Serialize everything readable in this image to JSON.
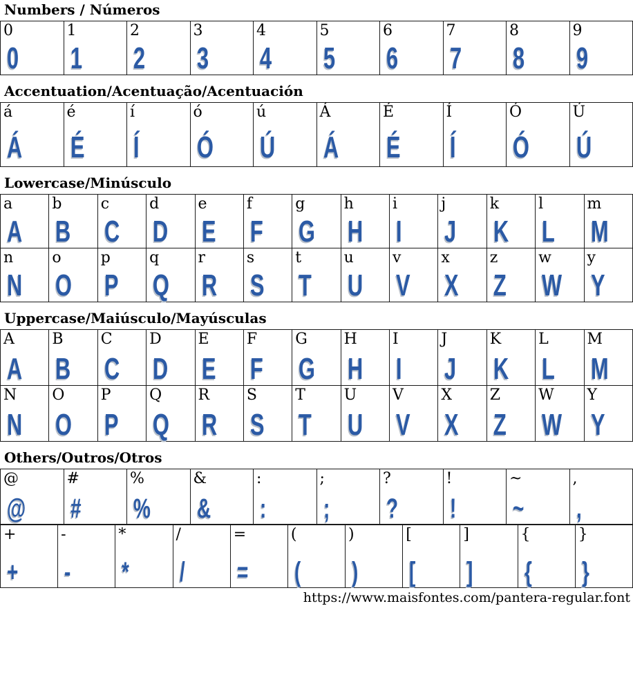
{
  "page": {
    "footer_url": "https://www.maisfontes.com/pantera-regular.font",
    "font_name": "Pantera Regular",
    "accent_color": "#2b5aa5",
    "glyph_shadow_color": "#b9c0ca",
    "border_color": "#1a1a1a"
  },
  "sections": [
    {
      "id": "numbers",
      "title": "Numbers / Números",
      "tables": [
        {
          "rows": [
            [
              {
                "ref": "0",
                "glyph": "0"
              },
              {
                "ref": "1",
                "glyph": "1"
              },
              {
                "ref": "2",
                "glyph": "2"
              },
              {
                "ref": "3",
                "glyph": "3"
              },
              {
                "ref": "4",
                "glyph": "4"
              },
              {
                "ref": "5",
                "glyph": "5"
              },
              {
                "ref": "6",
                "glyph": "6"
              },
              {
                "ref": "7",
                "glyph": "7"
              },
              {
                "ref": "8",
                "glyph": "8"
              },
              {
                "ref": "9",
                "glyph": "9"
              }
            ]
          ]
        }
      ]
    },
    {
      "id": "accentuation",
      "title": "Accentuation/Acentuação/Acentuación",
      "tables": [
        {
          "rows": [
            [
              {
                "ref": "á",
                "glyph": "Á"
              },
              {
                "ref": "é",
                "glyph": "É"
              },
              {
                "ref": "í",
                "glyph": "Í"
              },
              {
                "ref": "ó",
                "glyph": "Ó"
              },
              {
                "ref": "ú",
                "glyph": "Ú"
              },
              {
                "ref": "Á",
                "glyph": "Á"
              },
              {
                "ref": "É",
                "glyph": "É"
              },
              {
                "ref": "Í",
                "glyph": "Í"
              },
              {
                "ref": "Ó",
                "glyph": "Ó"
              },
              {
                "ref": "Ú",
                "glyph": "Ú"
              }
            ]
          ]
        }
      ]
    },
    {
      "id": "lowercase",
      "title": "Lowercase/Minúsculo",
      "tables": [
        {
          "rows": [
            [
              {
                "ref": "a",
                "glyph": "A"
              },
              {
                "ref": "b",
                "glyph": "B"
              },
              {
                "ref": "c",
                "glyph": "C"
              },
              {
                "ref": "d",
                "glyph": "D"
              },
              {
                "ref": "e",
                "glyph": "E"
              },
              {
                "ref": "f",
                "glyph": "F"
              },
              {
                "ref": "g",
                "glyph": "G"
              },
              {
                "ref": "h",
                "glyph": "H"
              },
              {
                "ref": "i",
                "glyph": "I"
              },
              {
                "ref": "j",
                "glyph": "J"
              },
              {
                "ref": "k",
                "glyph": "K"
              },
              {
                "ref": "l",
                "glyph": "L"
              },
              {
                "ref": "m",
                "glyph": "M"
              }
            ],
            [
              {
                "ref": "n",
                "glyph": "N"
              },
              {
                "ref": "o",
                "glyph": "O"
              },
              {
                "ref": "p",
                "glyph": "P"
              },
              {
                "ref": "q",
                "glyph": "Q"
              },
              {
                "ref": "r",
                "glyph": "R"
              },
              {
                "ref": "s",
                "glyph": "S"
              },
              {
                "ref": "t",
                "glyph": "T"
              },
              {
                "ref": "u",
                "glyph": "U"
              },
              {
                "ref": "v",
                "glyph": "V"
              },
              {
                "ref": "x",
                "glyph": "X"
              },
              {
                "ref": "z",
                "glyph": "Z"
              },
              {
                "ref": "w",
                "glyph": "W"
              },
              {
                "ref": "y",
                "glyph": "Y"
              }
            ]
          ]
        }
      ]
    },
    {
      "id": "uppercase",
      "title": "Uppercase/Maiúsculo/Mayúsculas",
      "tables": [
        {
          "rows": [
            [
              {
                "ref": "A",
                "glyph": "A"
              },
              {
                "ref": "B",
                "glyph": "B"
              },
              {
                "ref": "C",
                "glyph": "C"
              },
              {
                "ref": "D",
                "glyph": "D"
              },
              {
                "ref": "E",
                "glyph": "E"
              },
              {
                "ref": "F",
                "glyph": "F"
              },
              {
                "ref": "G",
                "glyph": "G"
              },
              {
                "ref": "H",
                "glyph": "H"
              },
              {
                "ref": "I",
                "glyph": "I"
              },
              {
                "ref": "J",
                "glyph": "J"
              },
              {
                "ref": "K",
                "glyph": "K"
              },
              {
                "ref": "L",
                "glyph": "L"
              },
              {
                "ref": "M",
                "glyph": "M"
              }
            ],
            [
              {
                "ref": "N",
                "glyph": "N"
              },
              {
                "ref": "O",
                "glyph": "O"
              },
              {
                "ref": "P",
                "glyph": "P"
              },
              {
                "ref": "Q",
                "glyph": "Q"
              },
              {
                "ref": "R",
                "glyph": "R"
              },
              {
                "ref": "S",
                "glyph": "S"
              },
              {
                "ref": "T",
                "glyph": "T"
              },
              {
                "ref": "U",
                "glyph": "U"
              },
              {
                "ref": "V",
                "glyph": "V"
              },
              {
                "ref": "X",
                "glyph": "X"
              },
              {
                "ref": "Z",
                "glyph": "Z"
              },
              {
                "ref": "W",
                "glyph": "W"
              },
              {
                "ref": "Y",
                "glyph": "Y"
              }
            ]
          ]
        }
      ]
    },
    {
      "id": "others",
      "title": "Others/Outros/Otros",
      "tables": [
        {
          "rows": [
            [
              {
                "ref": "@",
                "glyph": "@"
              },
              {
                "ref": "#",
                "glyph": "#"
              },
              {
                "ref": "%",
                "glyph": "%"
              },
              {
                "ref": "&",
                "glyph": "&"
              },
              {
                "ref": ":",
                "glyph": ":"
              },
              {
                "ref": ";",
                "glyph": ";"
              },
              {
                "ref": "?",
                "glyph": "?"
              },
              {
                "ref": "!",
                "glyph": "!"
              },
              {
                "ref": "~",
                "glyph": "~"
              },
              {
                "ref": ",",
                "glyph": ","
              }
            ]
          ]
        },
        {
          "rows": [
            [
              {
                "ref": "+",
                "glyph": "+"
              },
              {
                "ref": "-",
                "glyph": "-"
              },
              {
                "ref": "*",
                "glyph": "*"
              },
              {
                "ref": "/",
                "glyph": "/"
              },
              {
                "ref": "=",
                "glyph": "="
              },
              {
                "ref": "(",
                "glyph": "("
              },
              {
                "ref": ")",
                "glyph": ")"
              },
              {
                "ref": "[",
                "glyph": "["
              },
              {
                "ref": "]",
                "glyph": "]"
              },
              {
                "ref": "{",
                "glyph": "{"
              },
              {
                "ref": "}",
                "glyph": "}"
              }
            ]
          ]
        }
      ]
    }
  ]
}
